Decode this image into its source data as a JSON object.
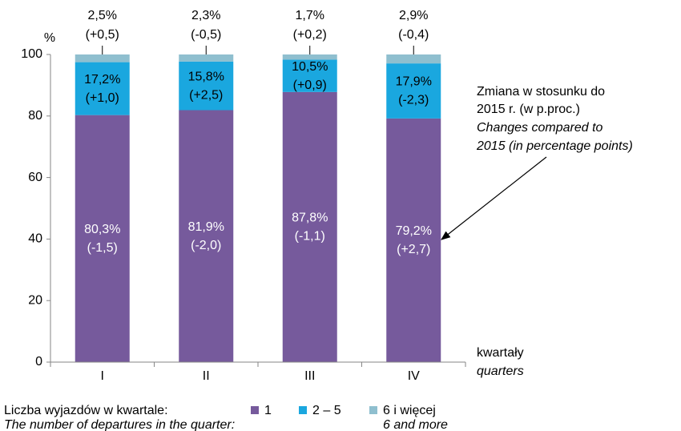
{
  "chart_data": {
    "type": "stacked_bar",
    "y_unit": "%",
    "x_label": "kwartały",
    "x_label_en": "quarters",
    "categories": [
      "I",
      "II",
      "III",
      "IV"
    ],
    "series": [
      {
        "name": "1",
        "color": "#765a9c",
        "values": [
          80.3,
          81.9,
          87.8,
          79.2
        ],
        "value_labels": [
          "80,3%",
          "81,9%",
          "87,8%",
          "79,2%"
        ],
        "changes": [
          -1.5,
          -2.0,
          -1.1,
          2.7
        ],
        "change_labels": [
          "(-1,5)",
          "(-2,0)",
          "(-1,1)",
          "(+2,7)"
        ]
      },
      {
        "name": "2 – 5",
        "color": "#1aa7df",
        "values": [
          17.2,
          15.8,
          10.5,
          17.9
        ],
        "value_labels": [
          "17,2%",
          "15,8%",
          "10,5%",
          "17,9%"
        ],
        "changes": [
          1.0,
          2.5,
          0.9,
          -2.3
        ],
        "change_labels": [
          "(+1,0)",
          "(+2,5)",
          "(+0,9)",
          "(-2,3)"
        ]
      },
      {
        "name": "6 i więcej",
        "name_en": "6 and more",
        "color": "#8fbfcf",
        "values": [
          2.5,
          2.3,
          1.7,
          2.9
        ],
        "value_labels": [
          "2,5%",
          "2,3%",
          "1,7%",
          "2,9%"
        ],
        "changes": [
          0.5,
          -0.5,
          0.2,
          -0.4
        ],
        "change_labels": [
          "(+0,5)",
          "(-0,5)",
          "(+0,2)",
          "(-0,4)"
        ]
      }
    ],
    "ylim": [
      0,
      100
    ],
    "yticks": [
      0,
      20,
      40,
      60,
      80,
      100
    ],
    "grid": false,
    "legend_title": "Liczba wyjazdów w kwartale:",
    "legend_title_en": "The number of departures in the quarter:",
    "annotation": [
      "Zmiana w stosunku do",
      "2015 r. (w p.proc.)"
    ],
    "annotation_en": [
      "Changes compared to",
      "2015 (in percentage points)"
    ]
  }
}
